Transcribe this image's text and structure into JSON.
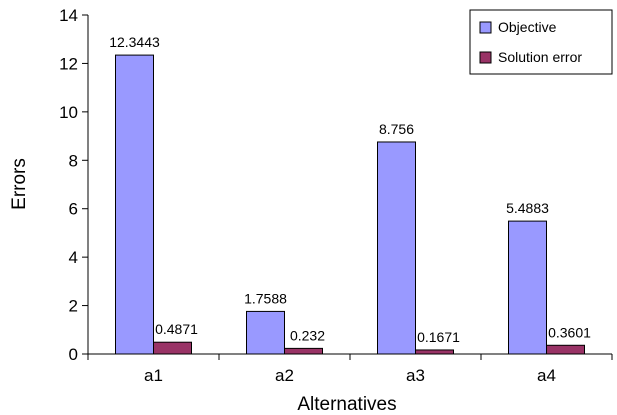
{
  "chart_data": {
    "type": "bar",
    "title": "",
    "xlabel": "Alternatives",
    "ylabel": "Errors",
    "categories": [
      "a1",
      "a2",
      "a3",
      "a4"
    ],
    "series": [
      {
        "name": "Objective",
        "color": "#9999ff",
        "values": [
          12.3443,
          1.7588,
          8.756,
          5.4883
        ],
        "labels": [
          "12.3443",
          "1.7588",
          "8.756",
          "5.4883"
        ]
      },
      {
        "name": "Solution error",
        "color": "#993366",
        "values": [
          0.4871,
          0.232,
          0.1671,
          0.3601
        ],
        "labels": [
          "0.4871",
          "0.232",
          "0.1671",
          "0.3601"
        ]
      }
    ],
    "ylim": [
      0,
      14
    ],
    "yticks": [
      "0",
      "2",
      "4",
      "6",
      "8",
      "10",
      "12",
      "14"
    ],
    "grid": false,
    "legend_position": "top-right"
  }
}
